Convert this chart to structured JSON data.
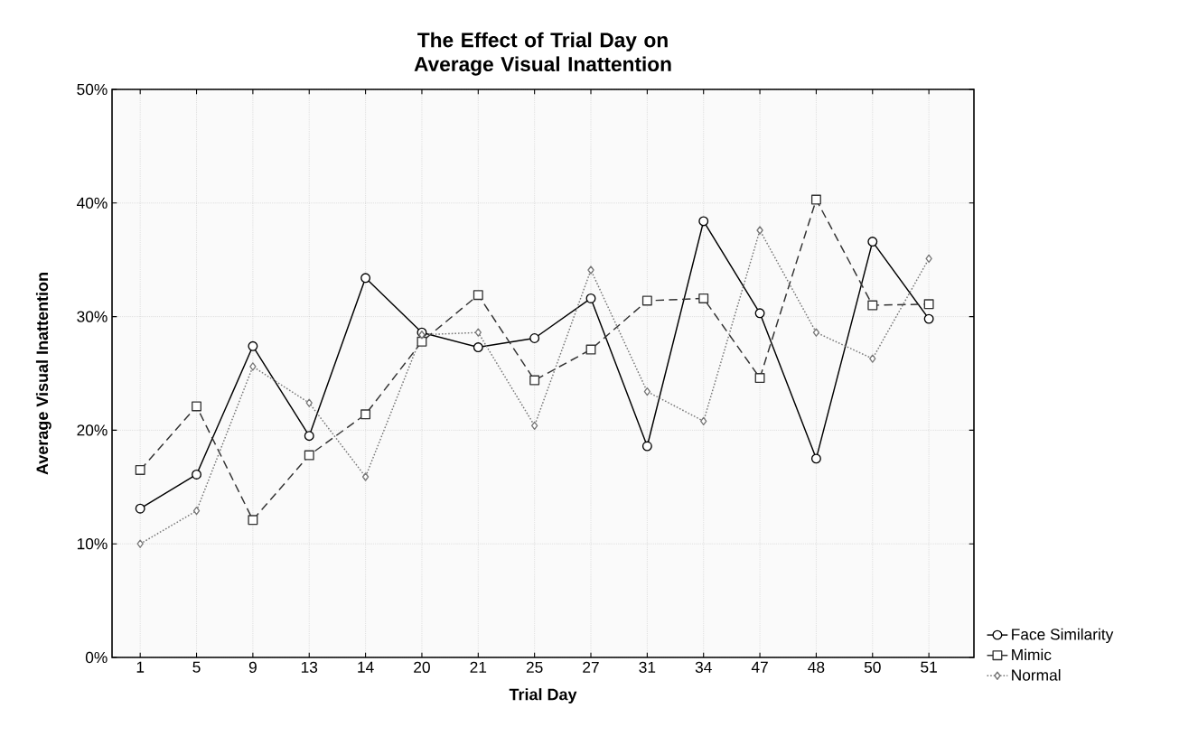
{
  "chart_data": {
    "type": "line",
    "title": "The Effect of Trial Day on Average Visual Inattention",
    "xlabel": "Trial Day",
    "ylabel": "Average Visual Inattention",
    "categories": [
      "1",
      "5",
      "9",
      "13",
      "14",
      "20",
      "21",
      "25",
      "27",
      "31",
      "34",
      "47",
      "48",
      "50",
      "51"
    ],
    "series": [
      {
        "name": "Face Similarity",
        "color": "#000000",
        "marker": "circle",
        "line_style": "solid",
        "values": [
          13.1,
          16.1,
          27.4,
          19.5,
          33.4,
          28.6,
          27.3,
          28.1,
          31.6,
          18.6,
          38.4,
          30.3,
          17.5,
          36.6,
          29.8
        ]
      },
      {
        "name": "Mimic",
        "color": "#333333",
        "marker": "square",
        "line_style": "dashed",
        "values": [
          16.5,
          22.1,
          12.1,
          17.8,
          21.4,
          27.8,
          31.9,
          24.4,
          27.1,
          31.4,
          31.6,
          24.6,
          40.3,
          31.0,
          31.1
        ]
      },
      {
        "name": "Normal",
        "color": "#777777",
        "marker": "diamond",
        "line_style": "dotted",
        "values": [
          10.0,
          12.9,
          25.6,
          22.4,
          15.9,
          28.4,
          28.6,
          20.4,
          34.1,
          23.4,
          20.8,
          37.6,
          28.6,
          26.3,
          35.1
        ]
      }
    ],
    "ylim": [
      0,
      50
    ],
    "yticks": [
      {
        "value": 0,
        "label": "0%"
      },
      {
        "value": 10,
        "label": "10%"
      },
      {
        "value": 20,
        "label": "20%"
      },
      {
        "value": 30,
        "label": "30%"
      },
      {
        "value": 40,
        "label": "40%"
      },
      {
        "value": 50,
        "label": "50%"
      }
    ],
    "grid": true,
    "legend": "bottom right"
  }
}
